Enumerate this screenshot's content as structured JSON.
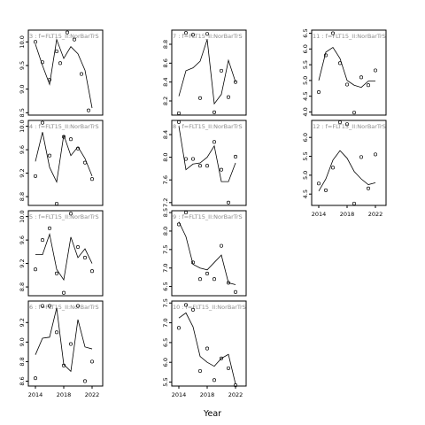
{
  "chart_data": {
    "type": "line",
    "xlabel": "Year",
    "x_ticks": [
      2014,
      2018,
      2022
    ],
    "xlim": [
      2013,
      2023.5
    ],
    "panels": [
      {
        "title": "3 : f=FLT15_II:NorBarTrS",
        "ylim": [
          8.45,
          10.25
        ],
        "yticks": [
          8.5,
          9.0,
          9.5,
          10.0
        ],
        "ytick_labels": [
          "8.5",
          "9.0",
          "9.5",
          "10.0"
        ],
        "show_x_ticks": false,
        "points": [
          [
            2014,
            10.0
          ],
          [
            2015,
            9.57
          ],
          [
            2016,
            9.2
          ],
          [
            2017,
            9.8
          ],
          [
            2017.5,
            9.55
          ],
          [
            2018.5,
            10.2
          ],
          [
            2019.5,
            10.05
          ],
          [
            2020.5,
            9.32
          ],
          [
            2021.5,
            8.55
          ]
        ],
        "line": [
          [
            2014,
            9.95
          ],
          [
            2015,
            9.5
          ],
          [
            2016,
            9.1
          ],
          [
            2017,
            10.05
          ],
          [
            2018,
            9.65
          ],
          [
            2019,
            9.9
          ],
          [
            2020,
            9.75
          ],
          [
            2021,
            9.4
          ],
          [
            2022,
            8.6
          ]
        ]
      },
      {
        "title": "7 : f=FLT15_II:NorBarTrS",
        "ylim": [
          8.05,
          8.95
        ],
        "yticks": [
          8.2,
          8.4,
          8.6,
          8.8
        ],
        "ytick_labels": [
          "8.2",
          "8.4",
          "8.6",
          "8.8"
        ],
        "show_x_ticks": false,
        "points": [
          [
            2014,
            8.07
          ],
          [
            2015,
            8.92
          ],
          [
            2016,
            8.9
          ],
          [
            2017,
            8.23
          ],
          [
            2018,
            8.91
          ],
          [
            2019,
            8.08
          ],
          [
            2020,
            8.52
          ],
          [
            2021,
            8.24
          ],
          [
            2022,
            8.4
          ]
        ],
        "line": [
          [
            2014,
            8.25
          ],
          [
            2015,
            8.52
          ],
          [
            2016,
            8.55
          ],
          [
            2017,
            8.62
          ],
          [
            2018,
            8.85
          ],
          [
            2019,
            8.17
          ],
          [
            2020,
            8.27
          ],
          [
            2021,
            8.63
          ],
          [
            2022,
            8.4
          ]
        ]
      },
      {
        "title": "11 : f=FLT15_II:NorBarTrS",
        "ylim": [
          3.9,
          6.6
        ],
        "yticks": [
          4.0,
          4.5,
          5.0,
          5.5,
          6.0,
          6.5
        ],
        "ytick_labels": [
          "4.0",
          "4.5",
          "5.0",
          "5.5",
          "6.0",
          "6.5"
        ],
        "show_x_ticks": false,
        "points": [
          [
            2014,
            4.63
          ],
          [
            2015,
            5.8
          ],
          [
            2016,
            6.5
          ],
          [
            2017,
            5.55
          ],
          [
            2018,
            4.87
          ],
          [
            2019,
            3.98
          ],
          [
            2020,
            5.1
          ],
          [
            2021,
            4.85
          ],
          [
            2022,
            5.32
          ]
        ],
        "line": [
          [
            2014,
            5.0
          ],
          [
            2015,
            5.9
          ],
          [
            2016,
            6.05
          ],
          [
            2017,
            5.7
          ],
          [
            2018,
            5.0
          ],
          [
            2019,
            4.85
          ],
          [
            2020,
            4.78
          ],
          [
            2021,
            4.98
          ],
          [
            2022,
            4.98
          ]
        ]
      },
      {
        "title": "4 : f=FLT15_II:NorBarTrS",
        "ylim": [
          8.65,
          10.1
        ],
        "yticks": [
          8.8,
          9.2,
          9.6,
          10.0
        ],
        "ytick_labels": [
          "8.8",
          "9.2",
          "9.6",
          "10.0"
        ],
        "show_x_ticks": false,
        "points": [
          [
            2014,
            9.15
          ],
          [
            2015,
            10.06
          ],
          [
            2016,
            9.5
          ],
          [
            2017,
            8.68
          ],
          [
            2018,
            9.82
          ],
          [
            2019,
            9.78
          ],
          [
            2020,
            9.62
          ],
          [
            2021,
            9.38
          ],
          [
            2022,
            9.1
          ]
        ],
        "line": [
          [
            2014,
            9.4
          ],
          [
            2015,
            9.9
          ],
          [
            2016,
            9.3
          ],
          [
            2017,
            9.05
          ],
          [
            2018,
            9.85
          ],
          [
            2019,
            9.5
          ],
          [
            2020,
            9.65
          ],
          [
            2021,
            9.45
          ],
          [
            2022,
            9.15
          ]
        ]
      },
      {
        "title": "8 : f=FLT15_II:NorBarTrS",
        "ylim": [
          7.15,
          8.65
        ],
        "yticks": [
          7.2,
          7.6,
          8.0,
          8.4
        ],
        "ytick_labels": [
          "7.2",
          "7.6",
          "8.0",
          "8.4"
        ],
        "show_x_ticks": false,
        "points": [
          [
            2014,
            8.62
          ],
          [
            2015,
            7.97
          ],
          [
            2016,
            7.97
          ],
          [
            2017,
            7.85
          ],
          [
            2018,
            7.85
          ],
          [
            2019,
            8.27
          ],
          [
            2020,
            7.78
          ],
          [
            2021,
            7.2
          ],
          [
            2022,
            8.01
          ]
        ],
        "line": [
          [
            2014,
            8.55
          ],
          [
            2015,
            7.78
          ],
          [
            2016,
            7.88
          ],
          [
            2017,
            7.9
          ],
          [
            2018,
            8.0
          ],
          [
            2019,
            8.2
          ],
          [
            2020,
            7.57
          ],
          [
            2021,
            7.57
          ],
          [
            2022,
            7.9
          ]
        ]
      },
      {
        "title": "12 : f=FLT15_II:NorBarTrS",
        "ylim": [
          4.2,
          6.45
        ],
        "yticks": [
          4.5,
          5.0,
          5.5,
          6.0
        ],
        "ytick_labels": [
          "4.5",
          "5.0",
          "5.5",
          "6.0"
        ],
        "show_x_ticks": true,
        "points": [
          [
            2014,
            4.78
          ],
          [
            2015,
            4.6
          ],
          [
            2016,
            5.2
          ],
          [
            2017,
            6.4
          ],
          [
            2018,
            6.35
          ],
          [
            2019,
            4.25
          ],
          [
            2020,
            5.48
          ],
          [
            2021,
            4.65
          ],
          [
            2022,
            5.55
          ]
        ],
        "line": [
          [
            2014,
            4.58
          ],
          [
            2015,
            4.9
          ],
          [
            2016,
            5.4
          ],
          [
            2017,
            5.65
          ],
          [
            2018,
            5.45
          ],
          [
            2019,
            5.1
          ],
          [
            2020,
            4.9
          ],
          [
            2021,
            4.75
          ],
          [
            2022,
            4.8
          ]
        ]
      },
      {
        "title": "5 : f=FLT15_II:NorBarTrS",
        "ylim": [
          8.65,
          10.1
        ],
        "yticks": [
          8.8,
          9.2,
          9.6,
          10.0
        ],
        "ytick_labels": [
          "8.8",
          "9.2",
          "9.6",
          "10.0"
        ],
        "show_x_ticks": false,
        "points": [
          [
            2014,
            9.1
          ],
          [
            2015,
            9.6
          ],
          [
            2016,
            9.8
          ],
          [
            2017,
            9.03
          ],
          [
            2018,
            8.7
          ],
          [
            2019,
            10.05
          ],
          [
            2020,
            9.48
          ],
          [
            2021,
            9.3
          ],
          [
            2022,
            9.07
          ]
        ],
        "line": [
          [
            2014,
            9.35
          ],
          [
            2015,
            9.35
          ],
          [
            2016,
            9.7
          ],
          [
            2017,
            9.1
          ],
          [
            2018,
            8.92
          ],
          [
            2019,
            9.65
          ],
          [
            2020,
            9.3
          ],
          [
            2021,
            9.45
          ],
          [
            2022,
            9.2
          ]
        ]
      },
      {
        "title": "9 : f=FLT15_II:NorBarTrS",
        "ylim": [
          6.25,
          8.55
        ],
        "yticks": [
          6.5,
          7.0,
          7.5,
          8.0,
          8.5
        ],
        "ytick_labels": [
          "6.5",
          "7.0",
          "7.5",
          "8.0",
          "8.5"
        ],
        "show_x_ticks": false,
        "points": [
          [
            2014,
            8.18
          ],
          [
            2015,
            8.5
          ],
          [
            2016,
            7.15
          ],
          [
            2017,
            6.7
          ],
          [
            2018,
            6.85
          ],
          [
            2019,
            6.7
          ],
          [
            2020,
            7.6
          ],
          [
            2021,
            6.6
          ],
          [
            2022,
            6.35
          ]
        ],
        "line": [
          [
            2014,
            8.25
          ],
          [
            2015,
            7.85
          ],
          [
            2016,
            7.1
          ],
          [
            2017,
            7.0
          ],
          [
            2018,
            6.95
          ],
          [
            2019,
            7.15
          ],
          [
            2020,
            7.35
          ],
          [
            2021,
            6.6
          ],
          [
            2022,
            6.55
          ]
        ]
      },
      {
        "title": "6 : f=FLT15_II:NorBarTrS",
        "ylim": [
          8.55,
          9.42
        ],
        "yticks": [
          8.6,
          8.8,
          9.0,
          9.2
        ],
        "ytick_labels": [
          "8.6",
          "8.8",
          "9.0",
          "9.2"
        ],
        "show_x_ticks": true,
        "points": [
          [
            2014,
            8.63
          ],
          [
            2015,
            9.37
          ],
          [
            2016,
            9.37
          ],
          [
            2017,
            9.1
          ],
          [
            2018,
            8.76
          ],
          [
            2019,
            8.98
          ],
          [
            2020,
            9.37
          ],
          [
            2021,
            8.6
          ],
          [
            2022,
            8.8
          ]
        ],
        "line": [
          [
            2014,
            8.87
          ],
          [
            2015,
            9.04
          ],
          [
            2016,
            9.05
          ],
          [
            2017,
            9.35
          ],
          [
            2018,
            8.77
          ],
          [
            2019,
            8.7
          ],
          [
            2020,
            9.23
          ],
          [
            2021,
            8.95
          ],
          [
            2022,
            8.93
          ]
        ]
      },
      {
        "title": "10 : f=FLT15_II:NorBarTrS",
        "ylim": [
          5.4,
          7.55
        ],
        "yticks": [
          5.5,
          6.0,
          6.5,
          7.0,
          7.5
        ],
        "ytick_labels": [
          "5.5",
          "6.0",
          "6.5",
          "7.0",
          "7.5"
        ],
        "show_x_ticks": true,
        "points": [
          [
            2014,
            6.87
          ],
          [
            2015,
            7.45
          ],
          [
            2016,
            7.33
          ],
          [
            2017,
            5.78
          ],
          [
            2018,
            6.35
          ],
          [
            2019,
            5.55
          ],
          [
            2020,
            6.1
          ],
          [
            2021,
            5.85
          ],
          [
            2022,
            5.42
          ]
        ],
        "line": [
          [
            2014,
            7.12
          ],
          [
            2015,
            7.25
          ],
          [
            2016,
            6.9
          ],
          [
            2017,
            6.15
          ],
          [
            2018,
            6.0
          ],
          [
            2019,
            5.9
          ],
          [
            2020,
            6.1
          ],
          [
            2021,
            6.2
          ],
          [
            2022,
            5.45
          ]
        ]
      }
    ]
  }
}
